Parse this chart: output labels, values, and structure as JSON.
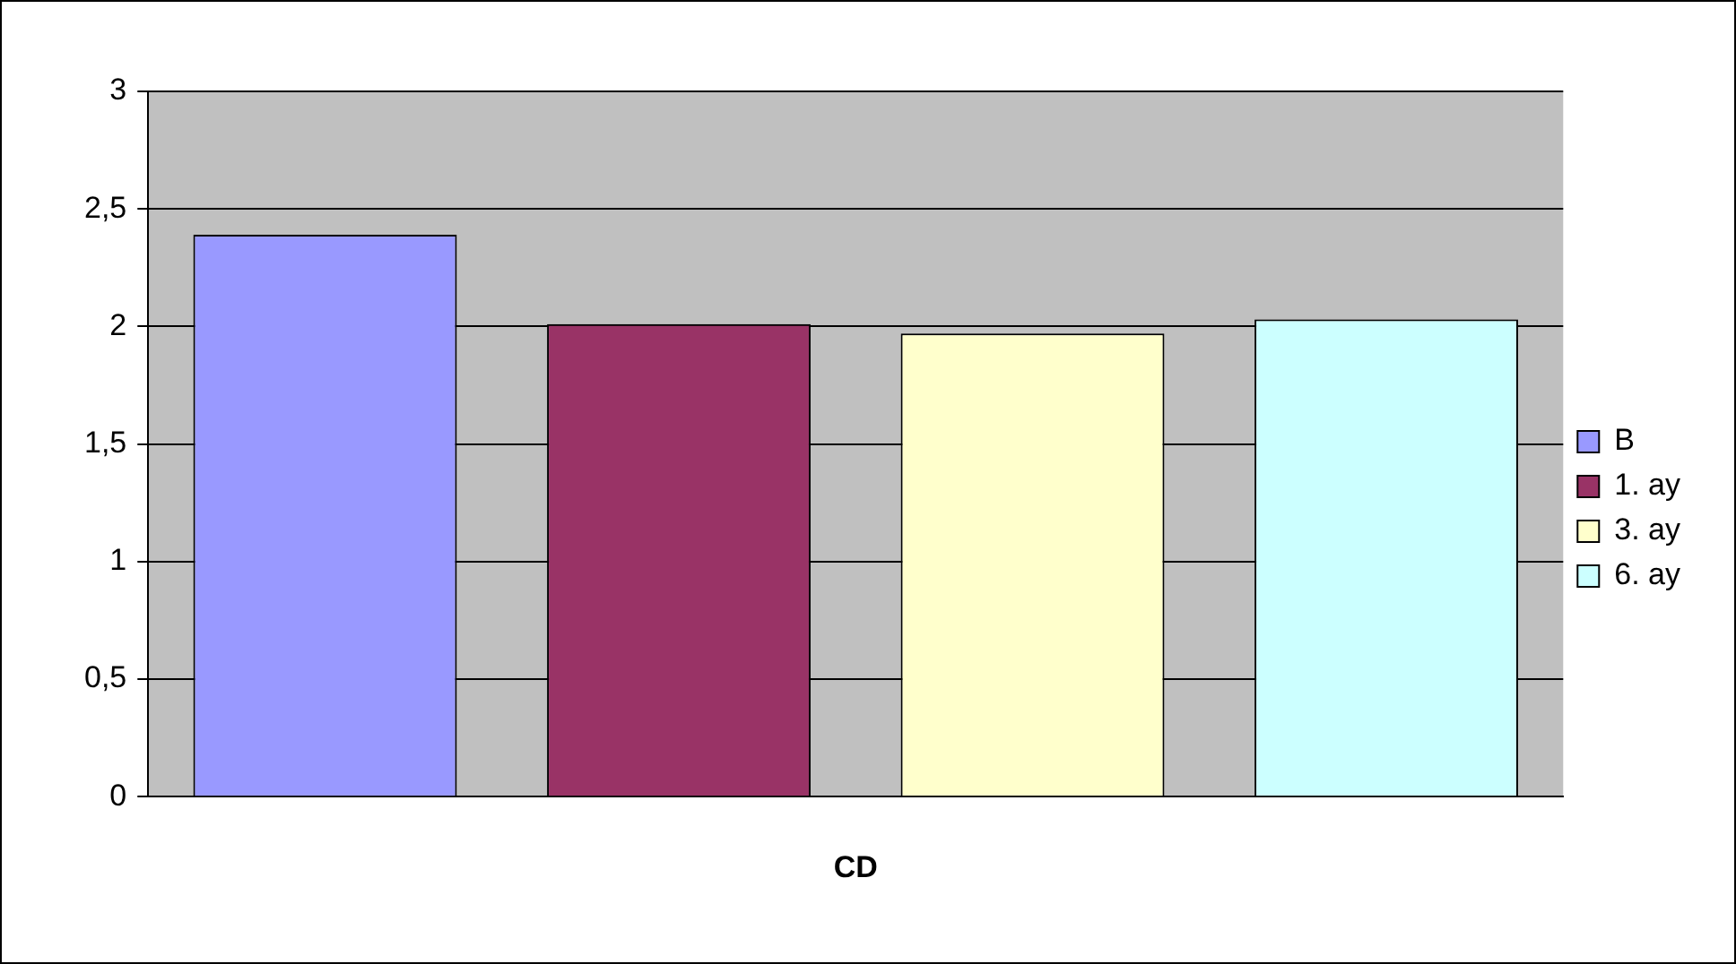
{
  "chart_data": {
    "type": "bar",
    "categories": [
      "CD"
    ],
    "series": [
      {
        "name": "B",
        "color": "#9999ff",
        "values": [
          2.39
        ]
      },
      {
        "name": "1. ay",
        "color": "#993366",
        "values": [
          2.01
        ]
      },
      {
        "name": "3. ay",
        "color": "#ffffcc",
        "values": [
          1.97
        ]
      },
      {
        "name": "6. ay",
        "color": "#ccffff",
        "values": [
          2.03
        ]
      }
    ],
    "ylim": [
      0,
      3
    ],
    "yticks": [
      0,
      {
        "value": 0.5,
        "label": "0,5"
      },
      1,
      {
        "value": 1.5,
        "label": "1,5"
      },
      2,
      {
        "value": 2.5,
        "label": "2,5"
      },
      3
    ],
    "grid": "y",
    "legend": "right"
  }
}
